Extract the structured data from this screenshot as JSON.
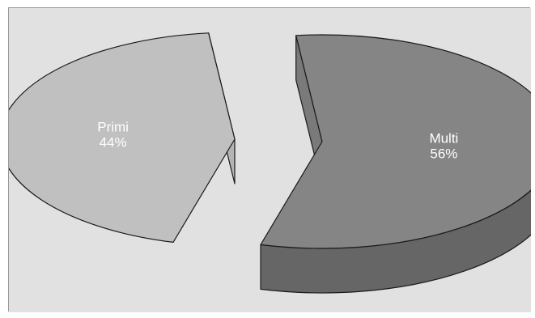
{
  "chart_data": {
    "type": "pie",
    "style": "3d-exploded",
    "slices": [
      {
        "label": "Primi",
        "value": 44,
        "value_label": "44%",
        "color": "#c0c0c0",
        "side_color": "#a5a5a5",
        "cut_color": "#b4b4b4"
      },
      {
        "label": "Multi",
        "value": 56,
        "value_label": "56%",
        "color": "#858585",
        "side_color": "#666666",
        "cut_color": "#7a7a7a"
      }
    ],
    "background_color": "#e1e1e1",
    "legend": "none"
  }
}
